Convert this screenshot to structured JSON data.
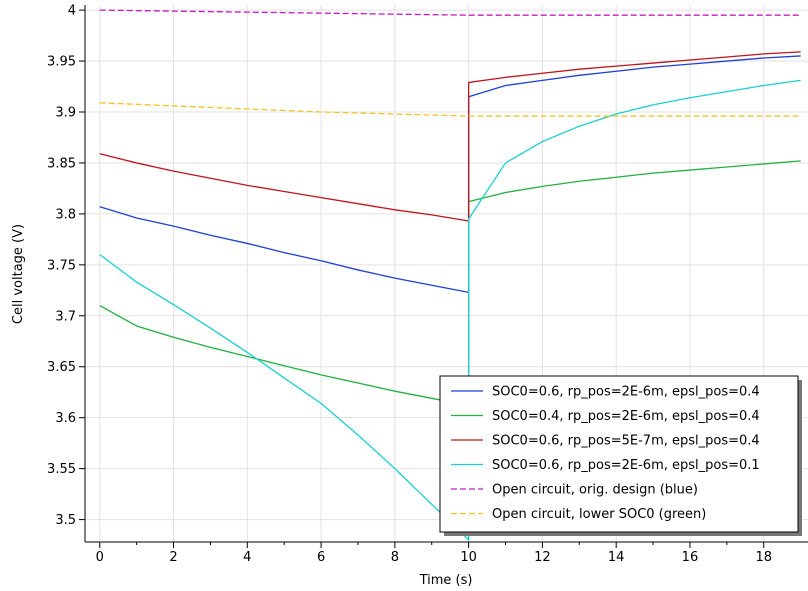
{
  "chart_data": {
    "type": "line",
    "xlabel": "Time (s)",
    "ylabel": "Cell voltage (V)",
    "xlim": [
      -0.4,
      19.2
    ],
    "ylim": [
      3.478,
      4.005
    ],
    "xticks": [
      0,
      2,
      4,
      6,
      8,
      10,
      12,
      14,
      16,
      18
    ],
    "yticks": [
      3.5,
      3.55,
      3.6,
      3.65,
      3.7,
      3.75,
      3.8,
      3.85,
      3.9,
      3.95,
      4.0
    ],
    "ytick_labels": [
      "3.5",
      "3.55",
      "3.6",
      "3.65",
      "3.7",
      "3.75",
      "3.8",
      "3.85",
      "3.9",
      "3.95",
      "4"
    ],
    "grid": true,
    "legend_position": "bottom-right",
    "series": [
      {
        "name": "SOC0=0.6, rp_pos=2E-6m, epsl_pos=0.4",
        "color": "#1f3fd6",
        "dash": "solid",
        "points": [
          [
            0,
            3.807
          ],
          [
            1,
            3.796
          ],
          [
            2,
            3.788
          ],
          [
            3,
            3.779
          ],
          [
            4,
            3.771
          ],
          [
            5,
            3.762
          ],
          [
            6,
            3.754
          ],
          [
            7,
            3.745
          ],
          [
            8,
            3.737
          ],
          [
            9,
            3.73
          ],
          [
            10,
            3.723
          ],
          [
            10,
            3.915
          ],
          [
            11,
            3.926
          ],
          [
            12,
            3.931
          ],
          [
            13,
            3.936
          ],
          [
            14,
            3.94
          ],
          [
            15,
            3.944
          ],
          [
            16,
            3.947
          ],
          [
            17,
            3.95
          ],
          [
            18,
            3.953
          ],
          [
            19,
            3.955
          ]
        ]
      },
      {
        "name": "SOC0=0.4, rp_pos=2E-6m, epsl_pos=0.4",
        "color": "#22b043",
        "dash": "solid",
        "points": [
          [
            0,
            3.71
          ],
          [
            1,
            3.69
          ],
          [
            2,
            3.679
          ],
          [
            3,
            3.669
          ],
          [
            4,
            3.66
          ],
          [
            5,
            3.651
          ],
          [
            6,
            3.642
          ],
          [
            7,
            3.634
          ],
          [
            8,
            3.626
          ],
          [
            9,
            3.619
          ],
          [
            10,
            3.612
          ],
          [
            10,
            3.812
          ],
          [
            11,
            3.821
          ],
          [
            12,
            3.827
          ],
          [
            13,
            3.832
          ],
          [
            14,
            3.836
          ],
          [
            15,
            3.84
          ],
          [
            16,
            3.843
          ],
          [
            17,
            3.846
          ],
          [
            18,
            3.849
          ],
          [
            19,
            3.852
          ]
        ]
      },
      {
        "name": "SOC0=0.6, rp_pos=5E-7m, epsl_pos=0.4",
        "color": "#c0141c",
        "dash": "solid",
        "points": [
          [
            0,
            3.859
          ],
          [
            1,
            3.85
          ],
          [
            2,
            3.842
          ],
          [
            3,
            3.835
          ],
          [
            4,
            3.828
          ],
          [
            5,
            3.822
          ],
          [
            6,
            3.816
          ],
          [
            7,
            3.81
          ],
          [
            8,
            3.804
          ],
          [
            9,
            3.799
          ],
          [
            10,
            3.793
          ],
          [
            10,
            3.929
          ],
          [
            11,
            3.934
          ],
          [
            12,
            3.938
          ],
          [
            13,
            3.942
          ],
          [
            14,
            3.945
          ],
          [
            15,
            3.948
          ],
          [
            16,
            3.951
          ],
          [
            17,
            3.954
          ],
          [
            18,
            3.957
          ],
          [
            19,
            3.959
          ]
        ]
      },
      {
        "name": "SOC0=0.6, rp_pos=2E-6m, epsl_pos=0.1",
        "color": "#19d0cf",
        "dash": "solid",
        "points": [
          [
            0,
            3.76
          ],
          [
            1,
            3.733
          ],
          [
            2,
            3.711
          ],
          [
            3,
            3.688
          ],
          [
            4,
            3.664
          ],
          [
            5,
            3.639
          ],
          [
            6,
            3.614
          ],
          [
            7,
            3.583
          ],
          [
            8,
            3.55
          ],
          [
            9,
            3.515
          ],
          [
            10,
            3.48
          ],
          [
            10,
            3.795
          ],
          [
            11,
            3.85
          ],
          [
            12,
            3.871
          ],
          [
            13,
            3.886
          ],
          [
            14,
            3.898
          ],
          [
            15,
            3.907
          ],
          [
            16,
            3.914
          ],
          [
            17,
            3.92
          ],
          [
            18,
            3.926
          ],
          [
            19,
            3.931
          ]
        ]
      },
      {
        "name": "Open circuit, orig. design (blue)",
        "color": "#c41bc4",
        "dash": "dashed",
        "points": [
          [
            0,
            4.0
          ],
          [
            2,
            3.999
          ],
          [
            4,
            3.998
          ],
          [
            6,
            3.997
          ],
          [
            8,
            3.996
          ],
          [
            10,
            3.995
          ],
          [
            12,
            3.995
          ],
          [
            14,
            3.995
          ],
          [
            16,
            3.995
          ],
          [
            18,
            3.995
          ],
          [
            19,
            3.995
          ]
        ]
      },
      {
        "name": "Open circuit, lower SOC0 (green)",
        "color": "#f2c428",
        "dash": "dashed",
        "points": [
          [
            0,
            3.909
          ],
          [
            2,
            3.906
          ],
          [
            4,
            3.903
          ],
          [
            6,
            3.9
          ],
          [
            8,
            3.898
          ],
          [
            10,
            3.896
          ],
          [
            12,
            3.896
          ],
          [
            14,
            3.896
          ],
          [
            16,
            3.896
          ],
          [
            18,
            3.896
          ],
          [
            19,
            3.896
          ]
        ]
      }
    ]
  }
}
